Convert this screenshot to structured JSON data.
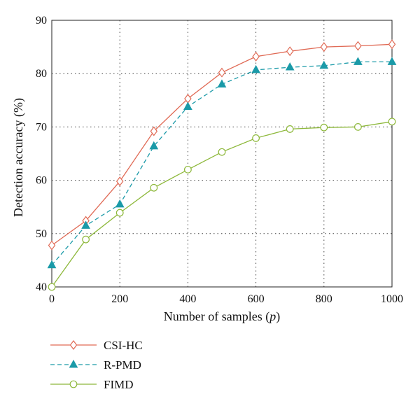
{
  "chart_data": {
    "type": "line",
    "xlabel_prefix": "Number of samples (",
    "xlabel_var": "p",
    "xlabel_suffix": ")",
    "ylabel": "Detection accuracy (%)",
    "xlim": [
      0,
      1000
    ],
    "ylim": [
      40,
      90
    ],
    "xticks": [
      "0",
      "200",
      "400",
      "600",
      "800",
      "1000"
    ],
    "yticks": [
      "40",
      "50",
      "60",
      "70",
      "80",
      "90"
    ],
    "grid": "dotted",
    "legend_position": "below-left",
    "x": [
      0,
      100,
      200,
      300,
      400,
      500,
      600,
      700,
      800,
      900,
      1000
    ],
    "series": [
      {
        "name": "CSI-HC",
        "color": "#e06a55",
        "marker": "diamond",
        "dash": "solid",
        "values": [
          47.8,
          52.4,
          59.8,
          69.2,
          75.3,
          80.2,
          83.2,
          84.2,
          85.0,
          85.2,
          85.5
        ]
      },
      {
        "name": "R-PMD",
        "color": "#1a9aa8",
        "marker": "triangle",
        "dash": "dashed",
        "values": [
          44.1,
          51.5,
          55.5,
          66.4,
          73.8,
          78.0,
          80.7,
          81.2,
          81.5,
          82.2,
          82.2
        ]
      },
      {
        "name": "FIMD",
        "color": "#8db83a",
        "marker": "circle",
        "dash": "solid",
        "values": [
          40.0,
          48.9,
          53.9,
          58.6,
          62.0,
          65.3,
          67.9,
          69.6,
          69.9,
          70.0,
          71.0
        ]
      }
    ]
  }
}
